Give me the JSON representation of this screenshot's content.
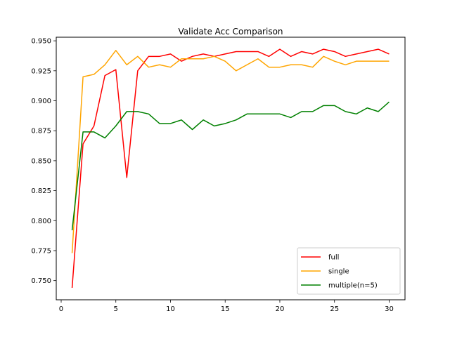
{
  "chart_data": {
    "type": "line",
    "title": "Validate Acc Comparison",
    "xlabel": "",
    "ylabel": "",
    "xlim": [
      -0.45,
      31.45
    ],
    "ylim": [
      0.734,
      0.953
    ],
    "xticks": [
      0,
      5,
      10,
      15,
      20,
      25,
      30
    ],
    "yticks": [
      0.75,
      0.775,
      0.8,
      0.825,
      0.85,
      0.875,
      0.9,
      0.925,
      0.95
    ],
    "ytick_labels": [
      "0.750",
      "0.775",
      "0.800",
      "0.825",
      "0.850",
      "0.875",
      "0.900",
      "0.925",
      "0.950"
    ],
    "grid": false,
    "legend_position": "lower-right",
    "x": [
      1,
      2,
      3,
      4,
      5,
      6,
      7,
      8,
      9,
      10,
      11,
      12,
      13,
      14,
      15,
      16,
      17,
      18,
      19,
      20,
      21,
      22,
      23,
      24,
      25,
      26,
      27,
      28,
      29,
      30
    ],
    "series": [
      {
        "name": "full",
        "color": "#ff0000",
        "values": [
          0.744,
          0.864,
          0.879,
          0.921,
          0.926,
          0.836,
          0.925,
          0.937,
          0.937,
          0.939,
          0.933,
          0.937,
          0.939,
          0.937,
          0.939,
          0.941,
          0.941,
          0.941,
          0.937,
          0.943,
          0.937,
          0.941,
          0.939,
          0.943,
          0.941,
          0.937,
          0.939,
          0.941,
          0.943,
          0.939
        ]
      },
      {
        "name": "single",
        "color": "#ffa500",
        "values": [
          0.773,
          0.92,
          0.922,
          0.93,
          0.942,
          0.93,
          0.937,
          0.928,
          0.93,
          0.928,
          0.935,
          0.935,
          0.935,
          0.937,
          0.933,
          0.925,
          0.93,
          0.935,
          0.928,
          0.928,
          0.93,
          0.93,
          0.928,
          0.937,
          0.933,
          0.93,
          0.933,
          0.933,
          0.933,
          0.933
        ]
      },
      {
        "name": "multiple(n=5)",
        "color": "#008000",
        "values": [
          0.792,
          0.874,
          0.874,
          0.869,
          0.879,
          0.891,
          0.891,
          0.889,
          0.881,
          0.881,
          0.884,
          0.876,
          0.884,
          0.879,
          0.881,
          0.884,
          0.889,
          0.889,
          0.889,
          0.889,
          0.886,
          0.891,
          0.891,
          0.896,
          0.896,
          0.891,
          0.889,
          0.894,
          0.891,
          0.899
        ]
      }
    ]
  }
}
